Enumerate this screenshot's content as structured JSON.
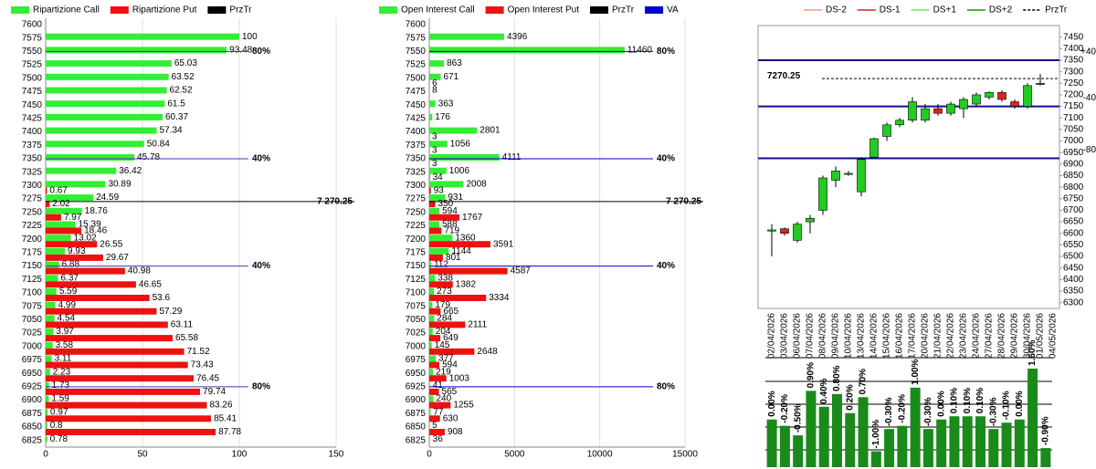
{
  "chart_data": [
    {
      "type": "hbar",
      "categories": [
        7600,
        7575,
        7550,
        7525,
        7500,
        7475,
        7450,
        7425,
        7400,
        7375,
        7350,
        7325,
        7300,
        7275,
        7250,
        7225,
        7200,
        7175,
        7150,
        7125,
        7100,
        7075,
        7050,
        7025,
        7000,
        6975,
        6950,
        6925,
        6900,
        6875,
        6850,
        6825
      ],
      "series": [
        {
          "name": "Ripartizione Call",
          "color": "#33ee33",
          "values": [
            null,
            100,
            93.48,
            65.03,
            63.52,
            62.52,
            61.5,
            60.37,
            57.34,
            50.84,
            45.78,
            36.42,
            30.89,
            24.59,
            18.76,
            15.39,
            13.02,
            9.93,
            6.88,
            6.37,
            5.59,
            4.99,
            4.54,
            3.97,
            3.58,
            3.11,
            2.23,
            1.73,
            1.59,
            0.97,
            0.8,
            0.78
          ]
        },
        {
          "name": "Ripartizione Put",
          "color": "#ee1111",
          "values": [
            null,
            null,
            null,
            null,
            null,
            null,
            null,
            null,
            null,
            null,
            null,
            null,
            0.67,
            2.02,
            7.97,
            18.46,
            26.55,
            29.67,
            40.98,
            46.65,
            53.6,
            57.29,
            63.11,
            65.58,
            71.52,
            73.43,
            76.45,
            79.74,
            83.26,
            85.41,
            87.78,
            null
          ]
        }
      ],
      "przTr": {
        "name": "PrzTr",
        "color": "#000000",
        "value": 7270.25,
        "label": "7 270.25"
      },
      "level_color": "#3b3bb0",
      "levels": [
        {
          "label": "80%",
          "value": 7550
        },
        {
          "label": "40%",
          "value": 7350
        },
        {
          "label": "40%",
          "value": 7150
        },
        {
          "label": "80%",
          "value": 6925
        }
      ],
      "xlim": [
        0,
        150
      ],
      "xticks": [
        0,
        50,
        100,
        150
      ]
    },
    {
      "type": "hbar",
      "categories": [
        7600,
        7575,
        7550,
        7525,
        7500,
        7475,
        7450,
        7425,
        7400,
        7375,
        7350,
        7325,
        7300,
        7275,
        7250,
        7225,
        7200,
        7175,
        7150,
        7125,
        7100,
        7075,
        7050,
        7025,
        7000,
        6975,
        6950,
        6925,
        6900,
        6875,
        6850,
        6825
      ],
      "series": [
        {
          "name": "Open Interest Call",
          "color": "#33ee33",
          "values": [
            null,
            4396,
            11460,
            863,
            671,
            8,
            363,
            176,
            2801,
            1056,
            4111,
            1006,
            2008,
            931,
            594,
            588,
            1360,
            1144,
            112,
            338,
            273,
            179,
            284,
            204,
            145,
            377,
            219,
            41,
            240,
            77,
            5,
            36
          ]
        },
        {
          "name": "Open Interest Put",
          "color": "#ee1111",
          "values": [
            null,
            null,
            null,
            null,
            6,
            null,
            null,
            null,
            3,
            3,
            3,
            34,
            93,
            350,
            1767,
            719,
            3591,
            801,
            4587,
            1382,
            3334,
            665,
            2111,
            649,
            2648,
            594,
            1003,
            565,
            1255,
            630,
            908,
            null
          ]
        }
      ],
      "przTr": {
        "name": "PrzTr",
        "color": "#000000",
        "value": 7270.25,
        "label": "7 270.25"
      },
      "va": {
        "name": "VA",
        "color": "#0000cc"
      },
      "levels": [
        {
          "label": "80%",
          "value": 7550
        },
        {
          "label": "40%",
          "value": 7350
        },
        {
          "label": "40%",
          "value": 7150
        },
        {
          "label": "80%",
          "value": 6925
        }
      ],
      "xlim": [
        0,
        15000
      ],
      "xticks": [
        0,
        5000,
        10000,
        15000
      ]
    },
    {
      "type": "candlestick",
      "legend": [
        {
          "name": "DS-2",
          "color": "#f4a07a"
        },
        {
          "name": "DS-1",
          "color": "#dd2222"
        },
        {
          "name": "DS+1",
          "color": "#66ee55"
        },
        {
          "name": "DS+2",
          "color": "#119911"
        },
        {
          "name": "PrzTr",
          "color": "#000000"
        }
      ],
      "x": [
        "02/04/2026",
        "03/04/2026",
        "06/04/2026",
        "07/04/2026",
        "08/04/2026",
        "09/04/2026",
        "10/04/2026",
        "13/04/2026",
        "14/04/2026",
        "15/04/2026",
        "16/04/2026",
        "17/04/2026",
        "20/04/2026",
        "21/04/2026",
        "22/04/2026",
        "23/04/2026",
        "24/04/2026",
        "27/04/2026",
        "28/04/2026",
        "29/04/2026",
        "30/04/2026",
        "01/05/2026",
        "04/05/2026"
      ],
      "open": [
        6610,
        6620,
        6570,
        6650,
        6700,
        6830,
        6855,
        6780,
        6930,
        7020,
        7070,
        7090,
        7090,
        7140,
        7120,
        7140,
        7160,
        7190,
        7210,
        7170,
        7150,
        7245,
        null
      ],
      "high": [
        6640,
        6625,
        6650,
        6680,
        6850,
        6890,
        6870,
        6930,
        7015,
        7080,
        7100,
        7190,
        7160,
        7160,
        7170,
        7190,
        7210,
        7215,
        7220,
        7180,
        7250,
        7290,
        null
      ],
      "low": [
        6500,
        6590,
        6560,
        6600,
        6680,
        6800,
        6850,
        6760,
        6925,
        7000,
        7060,
        7080,
        7080,
        7110,
        7110,
        7100,
        7150,
        7180,
        7170,
        7140,
        7140,
        7240,
        null
      ],
      "close": [
        6615,
        6600,
        6640,
        6665,
        6840,
        6870,
        6860,
        6920,
        7010,
        7070,
        7090,
        7170,
        7140,
        7120,
        7160,
        7180,
        7200,
        7210,
        7180,
        7150,
        7240,
        7250,
        null
      ],
      "up_color": "#22cc22",
      "down_color": "#dd2222",
      "przTr": {
        "value": 7270.25,
        "label": "7270.25"
      },
      "level_color": "#101090",
      "levels": [
        {
          "label": "+40",
          "value": 7350
        },
        {
          "label": "-40",
          "value": 7150
        },
        {
          "label": "-80",
          "value": 6925
        }
      ],
      "ylim": [
        6275,
        7500
      ],
      "yticks": [
        6300,
        6350,
        6400,
        6450,
        6500,
        6550,
        6600,
        6650,
        6700,
        6750,
        6800,
        6850,
        6900,
        6950,
        7000,
        7050,
        7100,
        7150,
        7200,
        7250,
        7300,
        7350,
        7400,
        7450
      ]
    },
    {
      "type": "bar",
      "color": "#1a8a1a",
      "values": [
        0,
        -0.2,
        -0.5,
        0.9,
        0.4,
        0.8,
        0.2,
        0.7,
        -1,
        -0.3,
        -0.2,
        1,
        -0.3,
        0,
        0.1,
        0.1,
        0.1,
        -0.3,
        -0.1,
        0,
        1.6,
        -0.9
      ],
      "value_labels": [
        "0.00%",
        "-0.20%",
        "-0.50%",
        "0.90%",
        "0.40%",
        "0.80%",
        "0.20%",
        "0.70%",
        "-1.00%",
        "-0.30%",
        "-0.20%",
        "1.00%",
        "-0.30%",
        "0.00%",
        "0.10%",
        "0.10%",
        "0.10%",
        "-0.30%",
        "-0.10%",
        "0.00%",
        "1.60%",
        "-0.90%"
      ],
      "ylim": [
        -1.5,
        2
      ]
    }
  ]
}
